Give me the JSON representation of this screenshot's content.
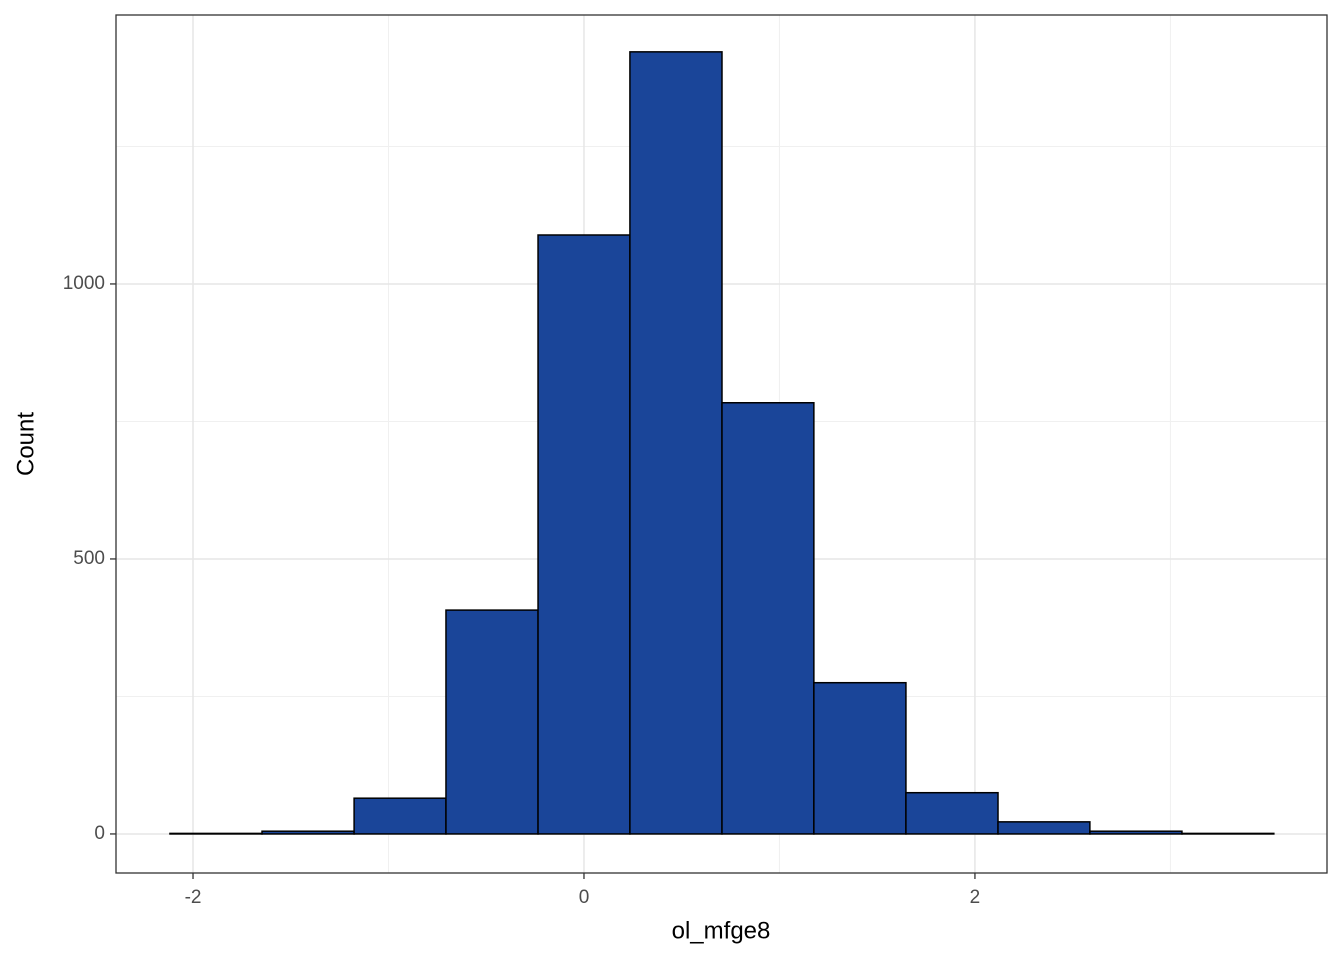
{
  "chart_data": {
    "type": "histogram",
    "x_label": "ol_mfge8",
    "y_label": "Count",
    "bins": [
      -2.118,
      -1.647,
      -1.176,
      -0.706,
      -0.235,
      0.235,
      0.706,
      1.176,
      1.647,
      2.118,
      2.588,
      3.059,
      3.529
    ],
    "values": [
      1,
      5,
      65,
      407,
      1089,
      1422,
      784,
      275,
      75,
      22,
      5,
      1
    ],
    "color": "#1a4599",
    "edgecolor": "#000000",
    "xlim": [
      -2.394,
      3.801
    ],
    "ylim": [
      -71,
      1489
    ],
    "xticks": [
      -2,
      0,
      2
    ],
    "yticks": [
      0,
      500,
      1000
    ],
    "xminor": [
      -1,
      1,
      3
    ],
    "yminor": [
      250,
      750,
      1250
    ],
    "grid": true
  }
}
